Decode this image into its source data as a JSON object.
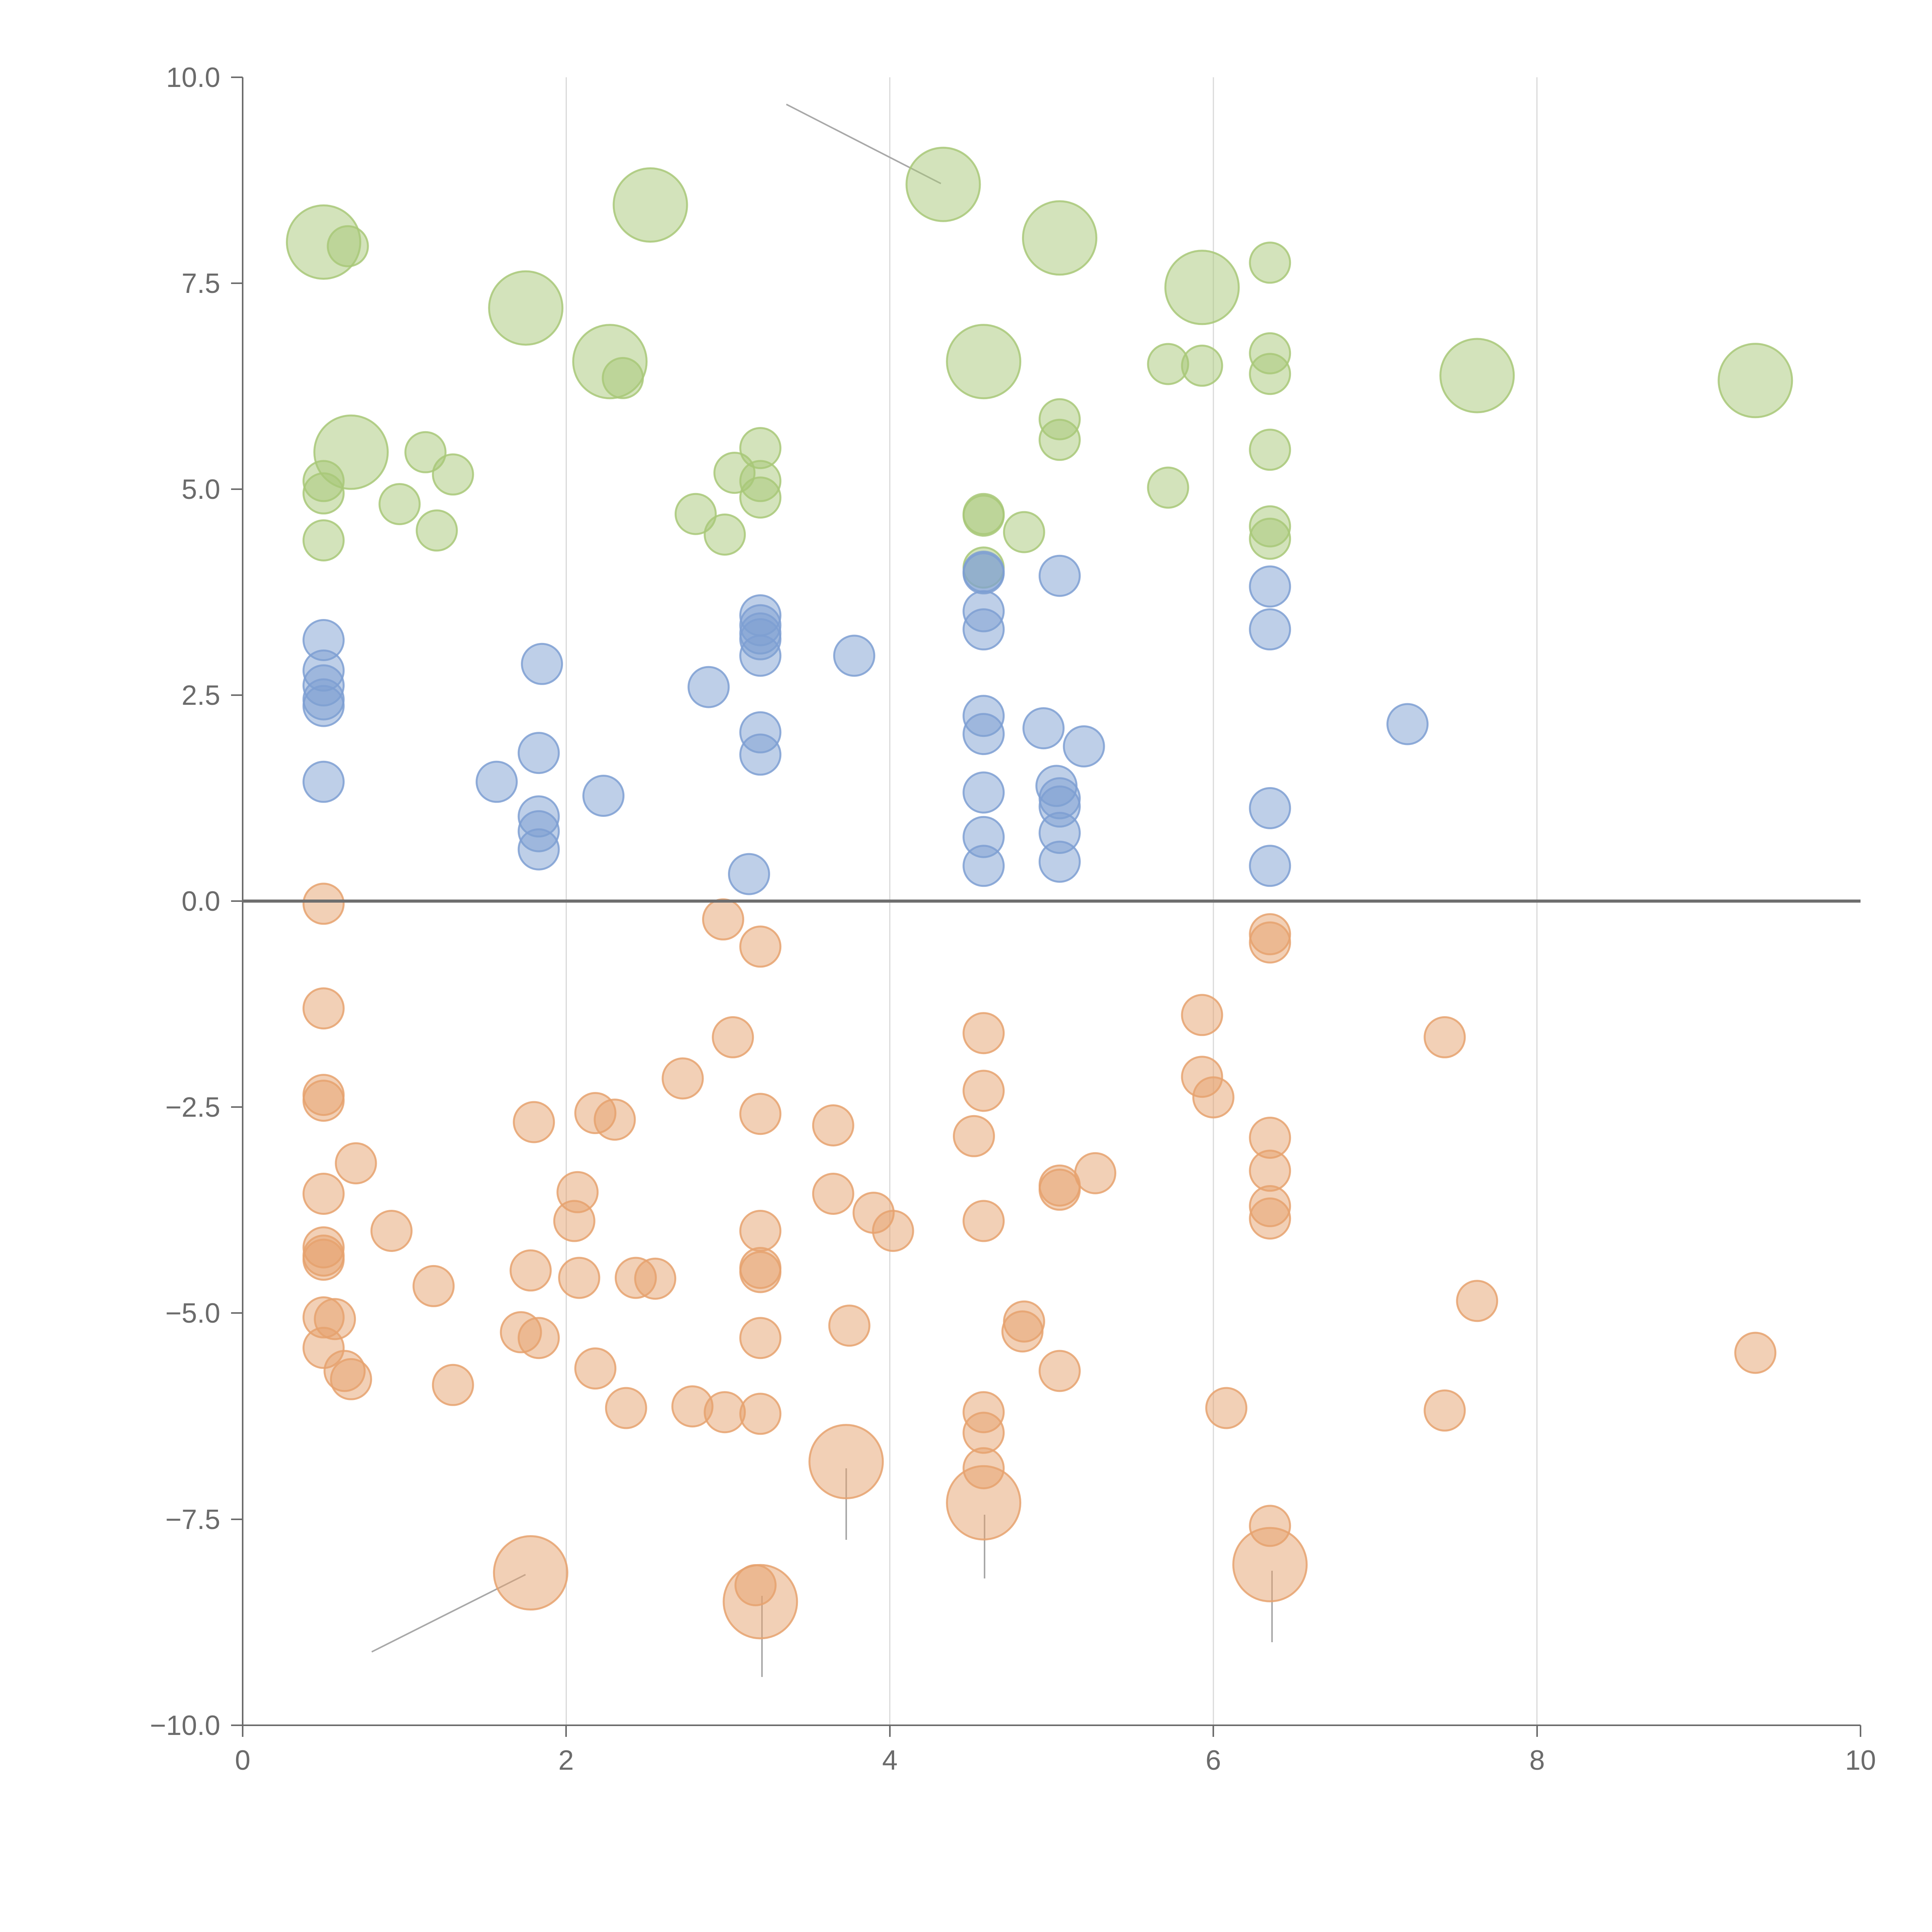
{
  "chart_data": {
    "type": "scatter",
    "title": "",
    "xlabel": "",
    "ylabel": "",
    "xlim": [
      0,
      10
    ],
    "ylim": [
      -10,
      10
    ],
    "x_ticks": [
      "0",
      "2",
      "4",
      "6",
      "8",
      "10"
    ],
    "y_ticks": [
      "−10.0",
      "−7.5",
      "−5.0",
      "−2.5",
      "0.0",
      "2.5",
      "5.0",
      "7.5",
      "10.0"
    ],
    "grid": "vertical",
    "reference_line_y": 0,
    "colors": {
      "green": "#a8c878",
      "blue": "#7e9fd2",
      "orange": "#e6a26e"
    },
    "series": [
      {
        "name": "green",
        "points": [
          {
            "x": 0.5,
            "y": 8.0,
            "s": 3
          },
          {
            "x": 0.65,
            "y": 7.95,
            "s": 1
          },
          {
            "x": 1.75,
            "y": 7.2,
            "s": 3
          },
          {
            "x": 2.52,
            "y": 8.45,
            "s": 3
          },
          {
            "x": 2.27,
            "y": 6.55,
            "s": 3
          },
          {
            "x": 2.35,
            "y": 6.35,
            "s": 1
          },
          {
            "x": 0.67,
            "y": 5.45,
            "s": 3
          },
          {
            "x": 0.5,
            "y": 5.1,
            "s": 1
          },
          {
            "x": 0.5,
            "y": 4.95,
            "s": 1
          },
          {
            "x": 0.5,
            "y": 4.38,
            "s": 1
          },
          {
            "x": 0.97,
            "y": 4.82,
            "s": 1
          },
          {
            "x": 1.13,
            "y": 5.45,
            "s": 1
          },
          {
            "x": 1.3,
            "y": 5.18,
            "s": 1
          },
          {
            "x": 1.2,
            "y": 4.5,
            "s": 1
          },
          {
            "x": 2.8,
            "y": 4.7,
            "s": 1
          },
          {
            "x": 2.98,
            "y": 4.45,
            "s": 1
          },
          {
            "x": 3.04,
            "y": 5.2,
            "s": 1
          },
          {
            "x": 3.2,
            "y": 5.5,
            "s": 1
          },
          {
            "x": 3.2,
            "y": 5.1,
            "s": 1
          },
          {
            "x": 3.2,
            "y": 4.9,
            "s": 1
          },
          {
            "x": 4.33,
            "y": 8.7,
            "s": 3
          },
          {
            "x": 4.58,
            "y": 6.55,
            "s": 3
          },
          {
            "x": 5.05,
            "y": 8.05,
            "s": 3
          },
          {
            "x": 5.93,
            "y": 7.45,
            "s": 3
          },
          {
            "x": 5.72,
            "y": 6.52,
            "s": 1
          },
          {
            "x": 5.93,
            "y": 6.5,
            "s": 1
          },
          {
            "x": 5.05,
            "y": 5.85,
            "s": 1
          },
          {
            "x": 5.05,
            "y": 5.6,
            "s": 1
          },
          {
            "x": 5.72,
            "y": 5.02,
            "s": 1
          },
          {
            "x": 4.58,
            "y": 4.7,
            "s": 1
          },
          {
            "x": 4.58,
            "y": 4.68,
            "s": 1
          },
          {
            "x": 4.83,
            "y": 4.48,
            "s": 1
          },
          {
            "x": 4.58,
            "y": 4.05,
            "s": 1
          },
          {
            "x": 6.35,
            "y": 7.75,
            "s": 1
          },
          {
            "x": 6.35,
            "y": 6.65,
            "s": 1
          },
          {
            "x": 6.35,
            "y": 6.4,
            "s": 1
          },
          {
            "x": 6.35,
            "y": 5.48,
            "s": 1
          },
          {
            "x": 6.35,
            "y": 4.55,
            "s": 1
          },
          {
            "x": 6.35,
            "y": 4.4,
            "s": 1
          },
          {
            "x": 7.63,
            "y": 6.38,
            "s": 3
          },
          {
            "x": 9.35,
            "y": 6.32,
            "s": 3
          }
        ]
      },
      {
        "name": "blue",
        "points": [
          {
            "x": 0.5,
            "y": 3.17,
            "s": 1
          },
          {
            "x": 0.5,
            "y": 2.8,
            "s": 1
          },
          {
            "x": 0.5,
            "y": 2.62,
            "s": 1
          },
          {
            "x": 0.5,
            "y": 2.45,
            "s": 1
          },
          {
            "x": 0.5,
            "y": 2.37,
            "s": 1
          },
          {
            "x": 0.5,
            "y": 1.45,
            "s": 1
          },
          {
            "x": 1.57,
            "y": 1.45,
            "s": 1
          },
          {
            "x": 1.85,
            "y": 2.88,
            "s": 1
          },
          {
            "x": 1.83,
            "y": 1.8,
            "s": 1
          },
          {
            "x": 1.83,
            "y": 1.03,
            "s": 1
          },
          {
            "x": 1.83,
            "y": 0.85,
            "s": 1
          },
          {
            "x": 1.83,
            "y": 0.63,
            "s": 1
          },
          {
            "x": 2.23,
            "y": 1.28,
            "s": 1
          },
          {
            "x": 2.88,
            "y": 2.6,
            "s": 1
          },
          {
            "x": 3.2,
            "y": 3.47,
            "s": 1
          },
          {
            "x": 3.2,
            "y": 3.35,
            "s": 1
          },
          {
            "x": 3.2,
            "y": 3.25,
            "s": 1
          },
          {
            "x": 3.2,
            "y": 3.18,
            "s": 1
          },
          {
            "x": 3.2,
            "y": 2.98,
            "s": 1
          },
          {
            "x": 3.2,
            "y": 2.05,
            "s": 1
          },
          {
            "x": 3.2,
            "y": 1.78,
            "s": 1
          },
          {
            "x": 3.13,
            "y": 0.33,
            "s": 1
          },
          {
            "x": 3.78,
            "y": 2.98,
            "s": 1
          },
          {
            "x": 4.58,
            "y": 4.0,
            "s": 1
          },
          {
            "x": 4.58,
            "y": 3.98,
            "s": 1
          },
          {
            "x": 4.58,
            "y": 3.52,
            "s": 1
          },
          {
            "x": 4.58,
            "y": 3.3,
            "s": 1
          },
          {
            "x": 4.58,
            "y": 2.25,
            "s": 1
          },
          {
            "x": 4.58,
            "y": 2.03,
            "s": 1
          },
          {
            "x": 4.58,
            "y": 1.32,
            "s": 1
          },
          {
            "x": 4.58,
            "y": 0.78,
            "s": 1
          },
          {
            "x": 4.58,
            "y": 0.43,
            "s": 1
          },
          {
            "x": 5.05,
            "y": 3.95,
            "s": 1
          },
          {
            "x": 4.95,
            "y": 2.1,
            "s": 1
          },
          {
            "x": 5.2,
            "y": 1.88,
            "s": 1
          },
          {
            "x": 5.03,
            "y": 1.4,
            "s": 1
          },
          {
            "x": 5.05,
            "y": 1.25,
            "s": 1
          },
          {
            "x": 5.05,
            "y": 1.15,
            "s": 1
          },
          {
            "x": 5.05,
            "y": 0.83,
            "s": 1
          },
          {
            "x": 5.05,
            "y": 0.48,
            "s": 1
          },
          {
            "x": 6.35,
            "y": 3.82,
            "s": 1
          },
          {
            "x": 6.35,
            "y": 3.3,
            "s": 1
          },
          {
            "x": 6.35,
            "y": 1.13,
            "s": 1
          },
          {
            "x": 6.35,
            "y": 0.43,
            "s": 1
          },
          {
            "x": 7.2,
            "y": 2.15,
            "s": 1
          }
        ]
      },
      {
        "name": "orange",
        "points": [
          {
            "x": 0.5,
            "y": -0.03,
            "s": 1
          },
          {
            "x": 0.5,
            "y": -1.3,
            "s": 1
          },
          {
            "x": 0.5,
            "y": -2.35,
            "s": 1
          },
          {
            "x": 0.5,
            "y": -2.42,
            "s": 1
          },
          {
            "x": 0.7,
            "y": -3.18,
            "s": 1
          },
          {
            "x": 0.5,
            "y": -3.55,
            "s": 1
          },
          {
            "x": 0.5,
            "y": -4.2,
            "s": 1
          },
          {
            "x": 0.5,
            "y": -4.3,
            "s": 1
          },
          {
            "x": 0.5,
            "y": -4.35,
            "s": 1
          },
          {
            "x": 0.92,
            "y": -4.0,
            "s": 1
          },
          {
            "x": 0.5,
            "y": -5.05,
            "s": 1
          },
          {
            "x": 0.57,
            "y": -5.07,
            "s": 1
          },
          {
            "x": 0.5,
            "y": -5.42,
            "s": 1
          },
          {
            "x": 0.63,
            "y": -5.7,
            "s": 1
          },
          {
            "x": 0.67,
            "y": -5.8,
            "s": 1
          },
          {
            "x": 1.18,
            "y": -4.67,
            "s": 1
          },
          {
            "x": 1.3,
            "y": -5.87,
            "s": 1
          },
          {
            "x": 1.78,
            "y": -8.15,
            "s": 3
          },
          {
            "x": 1.8,
            "y": -2.68,
            "s": 1
          },
          {
            "x": 1.78,
            "y": -4.48,
            "s": 1
          },
          {
            "x": 1.72,
            "y": -5.23,
            "s": 1
          },
          {
            "x": 1.83,
            "y": -5.3,
            "s": 1
          },
          {
            "x": 2.07,
            "y": -3.53,
            "s": 1
          },
          {
            "x": 2.05,
            "y": -3.88,
            "s": 1
          },
          {
            "x": 2.08,
            "y": -4.57,
            "s": 1
          },
          {
            "x": 2.18,
            "y": -2.57,
            "s": 1
          },
          {
            "x": 2.3,
            "y": -2.65,
            "s": 1
          },
          {
            "x": 2.43,
            "y": -4.57,
            "s": 1
          },
          {
            "x": 2.55,
            "y": -4.58,
            "s": 1
          },
          {
            "x": 2.18,
            "y": -5.67,
            "s": 1
          },
          {
            "x": 2.37,
            "y": -6.15,
            "s": 1
          },
          {
            "x": 2.72,
            "y": -2.15,
            "s": 1
          },
          {
            "x": 2.78,
            "y": -6.13,
            "s": 1
          },
          {
            "x": 2.98,
            "y": -6.2,
            "s": 1
          },
          {
            "x": 2.97,
            "y": -0.22,
            "s": 1
          },
          {
            "x": 3.03,
            "y": -1.65,
            "s": 1
          },
          {
            "x": 3.2,
            "y": -0.55,
            "s": 1
          },
          {
            "x": 3.2,
            "y": -2.58,
            "s": 1
          },
          {
            "x": 3.2,
            "y": -4.0,
            "s": 1
          },
          {
            "x": 3.2,
            "y": -4.45,
            "s": 1
          },
          {
            "x": 3.2,
            "y": -4.5,
            "s": 1
          },
          {
            "x": 3.2,
            "y": -5.3,
            "s": 1
          },
          {
            "x": 3.2,
            "y": -6.22,
            "s": 1
          },
          {
            "x": 3.2,
            "y": -8.5,
            "s": 3
          },
          {
            "x": 3.17,
            "y": -8.3,
            "s": 1
          },
          {
            "x": 3.65,
            "y": -2.72,
            "s": 1
          },
          {
            "x": 3.65,
            "y": -3.55,
            "s": 1
          },
          {
            "x": 3.9,
            "y": -3.78,
            "s": 1
          },
          {
            "x": 4.02,
            "y": -4.0,
            "s": 1
          },
          {
            "x": 3.75,
            "y": -5.15,
            "s": 1
          },
          {
            "x": 3.73,
            "y": -6.8,
            "s": 3
          },
          {
            "x": 4.58,
            "y": -1.6,
            "s": 1
          },
          {
            "x": 4.58,
            "y": -2.3,
            "s": 1
          },
          {
            "x": 4.52,
            "y": -2.85,
            "s": 1
          },
          {
            "x": 4.58,
            "y": -3.88,
            "s": 1
          },
          {
            "x": 4.83,
            "y": -5.1,
            "s": 1
          },
          {
            "x": 4.82,
            "y": -5.22,
            "s": 1
          },
          {
            "x": 4.58,
            "y": -6.2,
            "s": 1
          },
          {
            "x": 4.58,
            "y": -6.45,
            "s": 1
          },
          {
            "x": 4.58,
            "y": -6.88,
            "s": 1
          },
          {
            "x": 4.58,
            "y": -7.3,
            "s": 3
          },
          {
            "x": 5.05,
            "y": -3.45,
            "s": 1
          },
          {
            "x": 5.05,
            "y": -3.5,
            "s": 1
          },
          {
            "x": 5.27,
            "y": -3.3,
            "s": 1
          },
          {
            "x": 5.05,
            "y": -5.7,
            "s": 1
          },
          {
            "x": 5.93,
            "y": -1.38,
            "s": 1
          },
          {
            "x": 5.93,
            "y": -2.13,
            "s": 1
          },
          {
            "x": 6.0,
            "y": -2.38,
            "s": 1
          },
          {
            "x": 6.08,
            "y": -6.15,
            "s": 1
          },
          {
            "x": 6.35,
            "y": -0.4,
            "s": 1
          },
          {
            "x": 6.35,
            "y": -0.5,
            "s": 1
          },
          {
            "x": 6.35,
            "y": -2.87,
            "s": 1
          },
          {
            "x": 6.35,
            "y": -3.27,
            "s": 1
          },
          {
            "x": 6.35,
            "y": -3.7,
            "s": 1
          },
          {
            "x": 6.35,
            "y": -3.85,
            "s": 1
          },
          {
            "x": 6.35,
            "y": -7.58,
            "s": 1
          },
          {
            "x": 6.35,
            "y": -8.05,
            "s": 3
          },
          {
            "x": 7.43,
            "y": -1.65,
            "s": 1
          },
          {
            "x": 7.43,
            "y": -6.18,
            "s": 1
          },
          {
            "x": 7.63,
            "y": -4.85,
            "s": 1
          },
          {
            "x": 9.35,
            "y": -5.48,
            "s": 1
          }
        ]
      }
    ]
  }
}
